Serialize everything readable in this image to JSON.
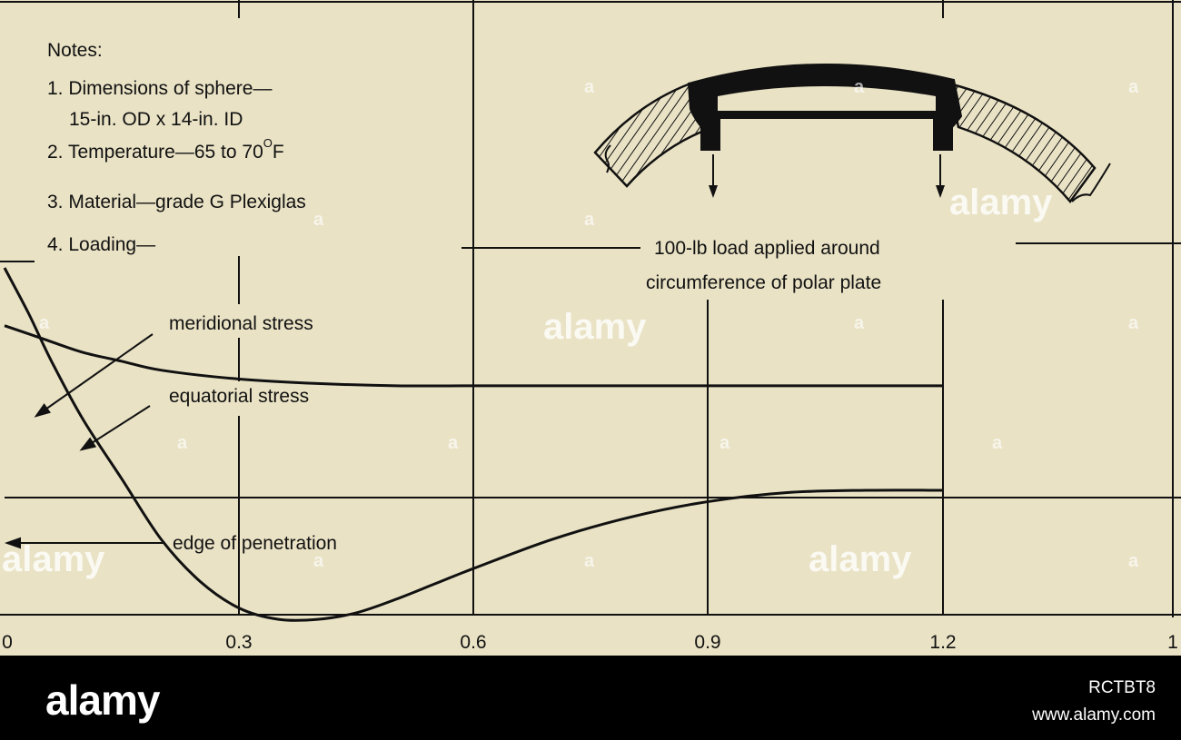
{
  "chart_data": {
    "type": "line",
    "x_ticks": [
      "0",
      "0.3",
      "0.6",
      "0.9",
      "1.2",
      "1"
    ],
    "xlim": [
      0,
      1.5
    ],
    "ylim": [
      -1,
      1
    ],
    "series": [
      {
        "x": [
          0,
          0.05,
          0.1,
          0.15,
          0.2,
          0.3,
          0.4,
          0.5,
          0.6,
          0.7,
          0.8,
          0.9,
          1.0,
          1.1,
          1.2
        ],
        "y": [
          0.74,
          0.68,
          0.62,
          0.58,
          0.54,
          0.5,
          0.48,
          0.47,
          0.47,
          0.47,
          0.47,
          0.47,
          0.47,
          0.47,
          0.47
        ]
      },
      {
        "x": [
          0,
          0.03,
          0.06,
          0.1,
          0.15,
          0.2,
          0.25,
          0.3,
          0.35,
          0.4,
          0.45,
          0.5,
          0.55,
          0.6,
          0.7,
          0.8,
          0.9,
          1.0,
          1.1,
          1.2
        ],
        "y": [
          1.0,
          0.8,
          0.58,
          0.32,
          0.05,
          -0.22,
          -0.41,
          -0.53,
          -0.58,
          -0.58,
          -0.55,
          -0.49,
          -0.42,
          -0.35,
          -0.22,
          -0.12,
          -0.05,
          -0.01,
          0.0,
          0.0
        ]
      }
    ]
  },
  "notes": {
    "heading": "Notes:",
    "line1": "1. Dimensions of sphere—",
    "line2": "15-in. OD x 14-in. ID",
    "line3a": "2. Temperature—65 to 70",
    "line3sup": "O",
    "line3b": "F",
    "line4": "3. Material—grade G Plexiglas",
    "line5": "4. Loading—"
  },
  "annotations": {
    "meridional": "meridional stress",
    "equatorial": "equatorial stress",
    "edge": "edge of penetration",
    "load_line1": "100-lb load applied around",
    "load_line2": "circumference of polar plate"
  },
  "watermark": {
    "brand": "alamy",
    "mark": "a",
    "image_id": "RCTBT8",
    "url": "www.alamy.com"
  }
}
